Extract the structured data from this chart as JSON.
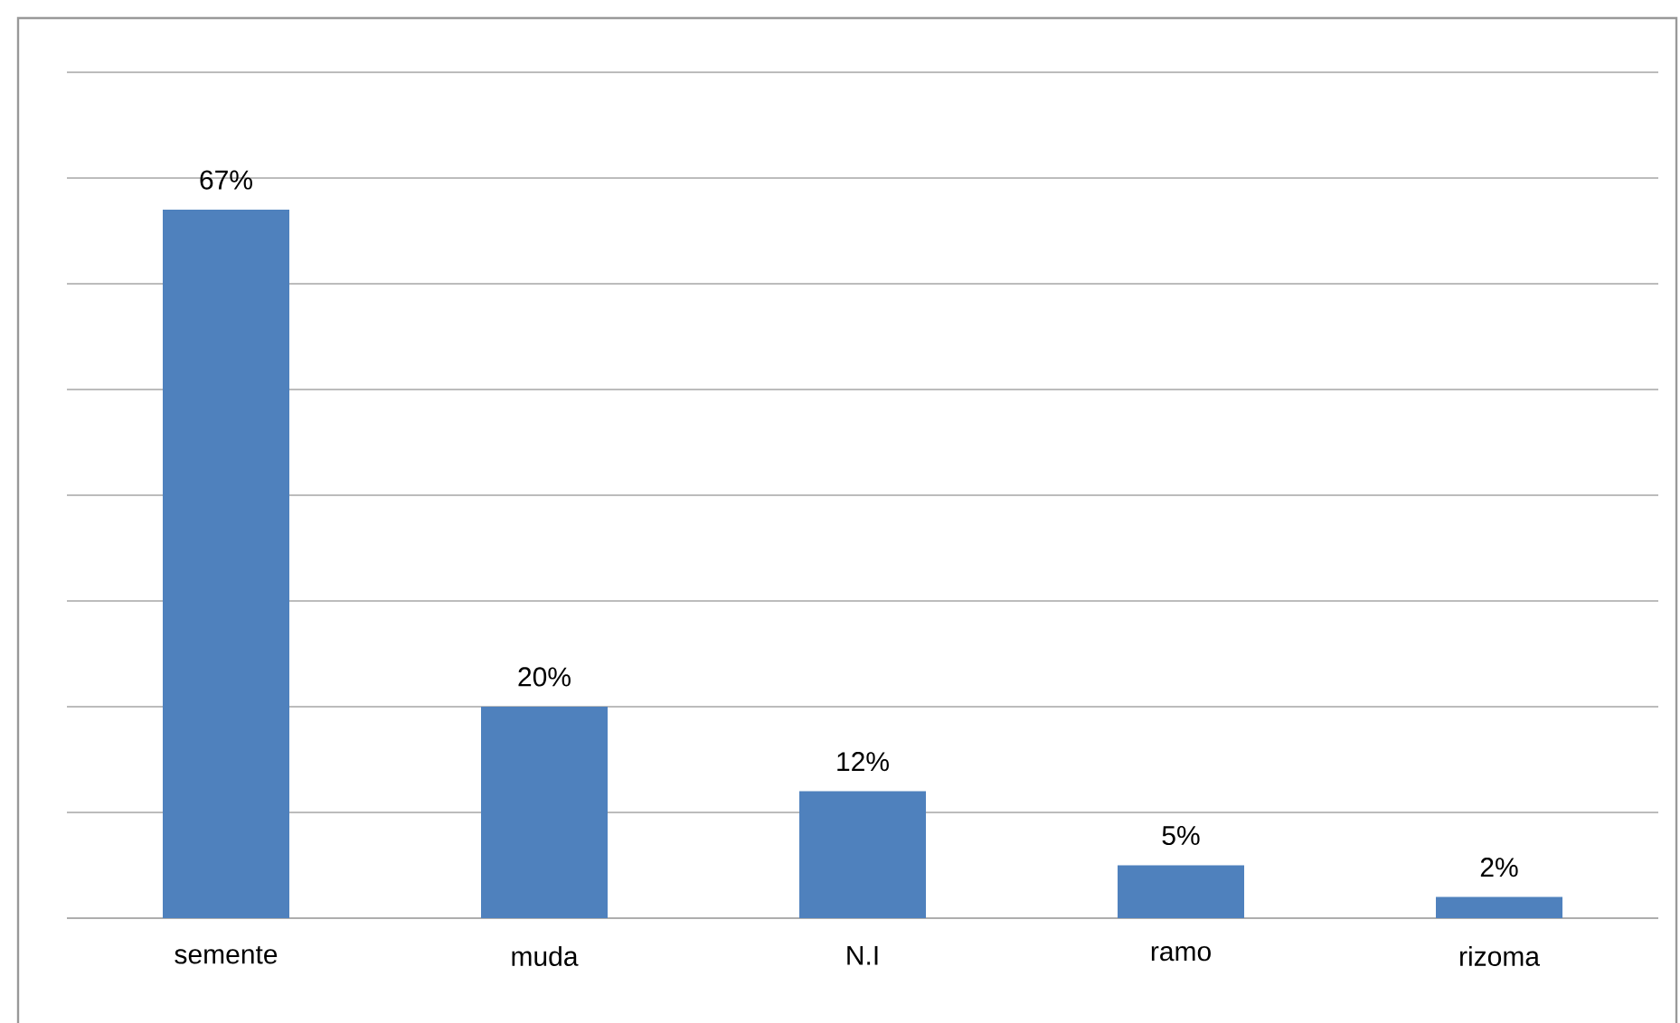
{
  "chart_data": {
    "type": "bar",
    "categories": [
      "semente",
      "muda",
      "N.I",
      "ramo",
      "rizoma"
    ],
    "values": [
      67,
      20,
      12,
      5,
      2
    ],
    "value_labels": [
      "67%",
      "20%",
      "12%",
      "5%",
      "2%"
    ],
    "color": "#4f81bd",
    "tick_labels": "x",
    "grid": "y"
  }
}
